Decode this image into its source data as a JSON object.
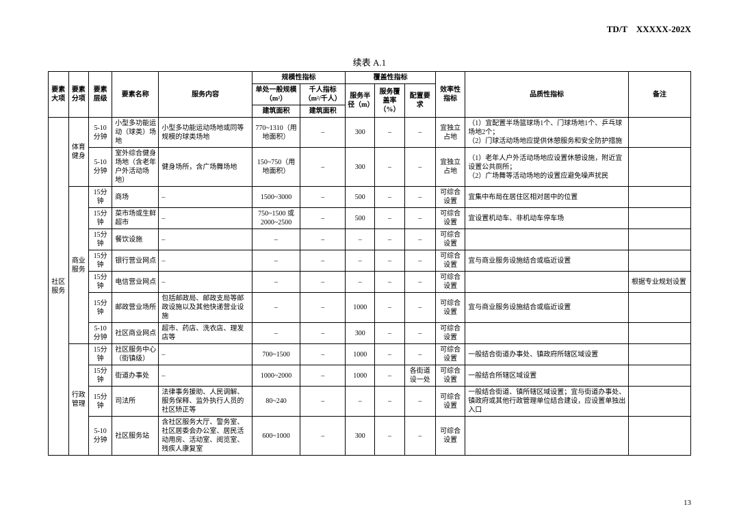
{
  "doc_id": "TD/T　XXXXX-202X",
  "table_title": "续表 A.1",
  "page_number": "13",
  "headers": {
    "h_major": "要素大项",
    "h_sub": "要素分项",
    "h_level": "要素层级",
    "h_name": "要素名称",
    "h_content": "服务内容",
    "h_scale_group": "规模性指标",
    "h_scale1": "单处一般规模（m²）",
    "h_scale2": "千人指标（m²/千人）",
    "h_area": "建筑面积",
    "h_area2": "建筑面积",
    "h_cover_group": "覆盖性指标",
    "h_radius": "服务半径（m）",
    "h_rate": "服务覆盖率（%）",
    "h_config": "配置要求",
    "h_eff": "效率性指标",
    "h_quality": "品质性指标",
    "h_note": "备注"
  },
  "majors": {
    "community_service": "社区服务"
  },
  "subs": {
    "sport": "体育健身",
    "commerce": "商业服务",
    "admin": "行政管理"
  },
  "rows": [
    {
      "level": "5-10分钟",
      "name": "小型多功能运动（球类）场地",
      "content": "小型多功能运动场地或同等规模的球类场地",
      "scale1": "770~1310（用地面积）",
      "scale2": "–",
      "radius": "300",
      "rate": "–",
      "config": "–",
      "eff": "宜独立占地",
      "quality": "（1）宜配置半场篮球场1个、门球场地1个、乒乓球场地2个；\n（2）门球活动场地应提供休憩服务和安全防护措施",
      "note": ""
    },
    {
      "level": "5-10分钟",
      "name": "室外综合健身场地（含老年户外活动场地）",
      "content": "健身场所，含广场舞场地",
      "scale1": "150~750（用地面积）",
      "scale2": "–",
      "radius": "300",
      "rate": "–",
      "config": "–",
      "eff": "宜独立占地",
      "quality": "（1）老年人户外活动场地应设置休憩设施，附近宜设置公共厕所；\n（2）广场舞等活动场地的设置应避免噪声扰民",
      "note": ""
    },
    {
      "level": "15分钟",
      "name": "商场",
      "content": "–",
      "scale1": "1500~3000",
      "scale2": "–",
      "radius": "500",
      "rate": "–",
      "config": "–",
      "eff": "可综合设置",
      "quality": "宜集中布局在居住区相对居中的位置",
      "note": ""
    },
    {
      "level": "15分钟",
      "name": "菜市场或生鲜超市",
      "content": "–",
      "scale1": "750~1500 或 2000~2500",
      "scale2": "–",
      "radius": "500",
      "rate": "–",
      "config": "–",
      "eff": "可综合设置",
      "quality": "宜设置机动车、非机动车停车场",
      "note": ""
    },
    {
      "level": "15分钟",
      "name": "餐饮设施",
      "content": "–",
      "scale1": "–",
      "scale2": "–",
      "radius": "–",
      "rate": "–",
      "config": "–",
      "eff": "可综合设置",
      "quality": "",
      "note": ""
    },
    {
      "level": "15分钟",
      "name": "银行营业网点",
      "content": "–",
      "scale1": "–",
      "scale2": "–",
      "radius": "–",
      "rate": "–",
      "config": "–",
      "eff": "可综合设置",
      "quality": "宜与商业服务设施结合或临近设置",
      "note": ""
    },
    {
      "level": "15分钟",
      "name": "电信营业网点",
      "content": "–",
      "scale1": "–",
      "scale2": "–",
      "radius": "–",
      "rate": "–",
      "config": "–",
      "eff": "可综合设置",
      "quality": "",
      "note": "根据专业规划设置"
    },
    {
      "level": "15分钟",
      "name": "邮政营业场所",
      "content": "包括邮政局、邮政支局等邮政设施以及其他快递营业设施",
      "scale1": "–",
      "scale2": "–",
      "radius": "1000",
      "rate": "–",
      "config": "–",
      "eff": "可综合设置",
      "quality": "宜与商业服务设施结合或临近设置",
      "note": ""
    },
    {
      "level": "5-10分钟",
      "name": "社区商业网点",
      "content": "超市、药店、洗衣店、理发店等",
      "scale1": "–",
      "scale2": "–",
      "radius": "300",
      "rate": "–",
      "config": "–",
      "eff": "可综合设置",
      "quality": "",
      "note": ""
    },
    {
      "level": "15分钟",
      "name": "社区服务中心（街镇级）",
      "content": "–",
      "scale1": "700~1500",
      "scale2": "–",
      "radius": "1000",
      "rate": "–",
      "config": "–",
      "eff": "可综合设置",
      "quality": "一般结合街道办事处、镇政府所辖区域设置",
      "note": ""
    },
    {
      "level": "15分钟",
      "name": "街道办事处",
      "content": "–",
      "scale1": "1000~2000",
      "scale2": "–",
      "radius": "1000",
      "rate": "–",
      "config": "各街道设一处",
      "eff": "可综合设置",
      "quality": "一般结合所辖区域设置",
      "note": ""
    },
    {
      "level": "15分钟",
      "name": "司法所",
      "content": "法律事务援助、人民调解、服务保释、监外执行人员的社区矫正等",
      "scale1": "80~240",
      "scale2": "–",
      "radius": "–",
      "rate": "–",
      "config": "–",
      "eff": "可综合设置",
      "quality": "一般结合街道、镇所辖区域设置；宜与街道办事处、镇政府或其他行政管理单位结合建设，应设置单独出入口",
      "note": ""
    },
    {
      "level": "5-10分钟",
      "name": "社区服务站",
      "content": "含社区服务大厅、警务室、社区居委会办公室、居民活动用房、活动室、阅览室、残疾人康复室",
      "scale1": "600~1000",
      "scale2": "–",
      "radius": "300",
      "rate": "–",
      "config": "–",
      "eff": "可综合设置",
      "quality": "",
      "note": ""
    }
  ]
}
